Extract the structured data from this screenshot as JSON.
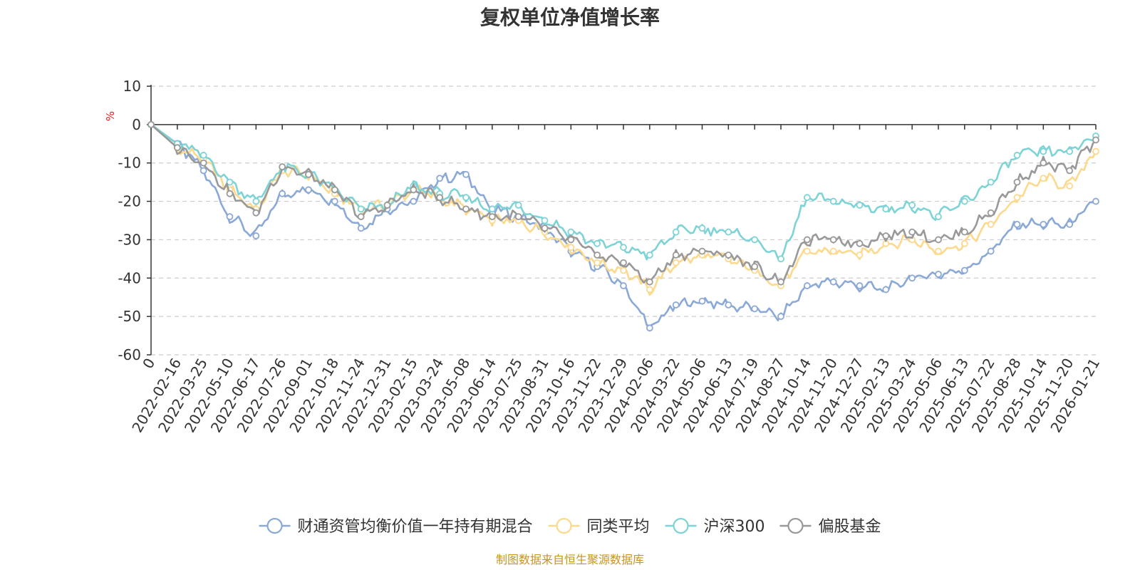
{
  "chart_data": {
    "type": "line",
    "title": "复权单位净值增长率",
    "ylabel": "%",
    "ylim": [
      -60,
      10
    ],
    "yticks": [
      10,
      0,
      -10,
      -20,
      -30,
      -40,
      -50,
      -60
    ],
    "grid": true,
    "legend_position": "bottom",
    "source": "制图数据来自恒生聚源数据库",
    "categories": [
      "0",
      "2022-02-16",
      "2022-03-25",
      "2022-05-10",
      "2022-06-17",
      "2022-07-26",
      "2022-09-01",
      "2022-10-18",
      "2022-11-24",
      "2022-12-31",
      "2023-02-15",
      "2023-03-24",
      "2023-05-08",
      "2023-06-14",
      "2023-07-25",
      "2023-08-31",
      "2023-10-16",
      "2023-11-22",
      "2023-12-29",
      "2024-02-06",
      "2024-03-22",
      "2024-05-06",
      "2024-06-13",
      "2024-07-19",
      "2024-08-27",
      "2024-10-14",
      "2024-11-20",
      "2024-12-27",
      "2025-02-13",
      "2025-03-24",
      "2025-05-06",
      "2025-06-13",
      "2025-07-22",
      "2025-08-28",
      "2025-10-14",
      "2025-11-20",
      "2026-01-21"
    ],
    "series": [
      {
        "name": "财通资管均衡价值一年持有期混合",
        "color": "#8aa9d6",
        "values": [
          0,
          -5,
          -12,
          -24,
          -29,
          -18,
          -17,
          -20,
          -27,
          -22,
          -20,
          -14,
          -13,
          -22,
          -24,
          -27,
          -33,
          -37,
          -42,
          -53,
          -47,
          -46,
          -47,
          -48,
          -50,
          -42,
          -41,
          -42,
          -43,
          -40,
          -39,
          -38,
          -33,
          -26,
          -26,
          -26,
          -20
        ]
      },
      {
        "name": "同类平均",
        "color": "#fcd98c",
        "values": [
          0,
          -6,
          -9,
          -17,
          -22,
          -12,
          -13,
          -18,
          -22,
          -21,
          -17,
          -19,
          -22,
          -25,
          -25,
          -28,
          -32,
          -36,
          -38,
          -43,
          -36,
          -34,
          -35,
          -38,
          -42,
          -33,
          -33,
          -34,
          -31,
          -30,
          -33,
          -31,
          -26,
          -19,
          -14,
          -16,
          -7
        ]
      },
      {
        "name": "沪深300",
        "color": "#7dd3d5",
        "values": [
          0,
          -5,
          -8,
          -15,
          -20,
          -11,
          -13,
          -17,
          -22,
          -21,
          -16,
          -18,
          -19,
          -22,
          -21,
          -25,
          -28,
          -31,
          -32,
          -34,
          -28,
          -27,
          -28,
          -30,
          -35,
          -19,
          -20,
          -21,
          -22,
          -21,
          -24,
          -20,
          -15,
          -8,
          -7,
          -7,
          -3
        ]
      },
      {
        "name": "偏股基金",
        "color": "#999999",
        "values": [
          0,
          -6,
          -10,
          -18,
          -23,
          -11,
          -13,
          -17,
          -24,
          -21,
          -17,
          -19,
          -22,
          -24,
          -24,
          -27,
          -30,
          -34,
          -36,
          -41,
          -34,
          -33,
          -34,
          -37,
          -41,
          -30,
          -30,
          -31,
          -29,
          -28,
          -30,
          -28,
          -23,
          -15,
          -10,
          -12,
          -4
        ]
      }
    ]
  }
}
